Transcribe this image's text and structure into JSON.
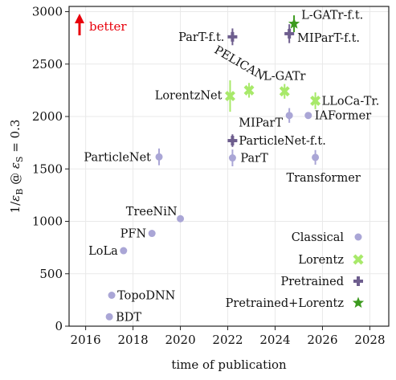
{
  "chart_data": {
    "type": "scatter",
    "xlabel": "time of publication",
    "ylabel": "1/ε_B @ ε_S = 0.3",
    "xlim": [
      2015.3,
      2028.8
    ],
    "ylim": [
      0,
      3050
    ],
    "x_ticks": [
      2016,
      2018,
      2020,
      2022,
      2024,
      2026,
      2028
    ],
    "y_ticks": [
      0,
      500,
      1000,
      1500,
      2000,
      2500,
      3000
    ],
    "grid": true,
    "legend_position": "bottom-right",
    "annotation": {
      "text": "better",
      "color": "#e8000b"
    },
    "colors": {
      "classical": "#aaa6d6",
      "lorentz": "#a8e96a",
      "pretrained": "#6e5e8e",
      "pretrained_lorentz": "#3c9a1e",
      "better": "#e8000b"
    },
    "legend": [
      {
        "label": "Classical",
        "category": "classical"
      },
      {
        "label": "Lorentz",
        "category": "lorentz"
      },
      {
        "label": "Pretrained",
        "category": "pretrained"
      },
      {
        "label": "Pretrained+Lorentz",
        "category": "pretrained_lorentz"
      }
    ],
    "points": [
      {
        "name": "BDT",
        "category": "classical",
        "x": 2017.0,
        "y": 90,
        "err": 0
      },
      {
        "name": "TopoDNN",
        "category": "classical",
        "x": 2017.1,
        "y": 295,
        "err": 0
      },
      {
        "name": "LoLa",
        "category": "classical",
        "x": 2017.6,
        "y": 720,
        "err": 0
      },
      {
        "name": "PFN",
        "category": "classical",
        "x": 2018.8,
        "y": 885,
        "err": 0
      },
      {
        "name": "TreeNiN",
        "category": "classical",
        "x": 2020.0,
        "y": 1025,
        "err": 0
      },
      {
        "name": "ParticleNet",
        "category": "classical",
        "x": 2019.1,
        "y": 1615,
        "err": 80
      },
      {
        "name": "ParT",
        "category": "classical",
        "x": 2022.2,
        "y": 1605,
        "err": 80
      },
      {
        "name": "MIParT",
        "category": "classical",
        "x": 2024.6,
        "y": 2010,
        "err": 70
      },
      {
        "name": "IAFormer",
        "category": "classical",
        "x": 2025.4,
        "y": 2010,
        "err": 0
      },
      {
        "name": "Transformer",
        "category": "classical",
        "x": 2025.7,
        "y": 1610,
        "err": 70
      },
      {
        "name": "LorentzNet",
        "category": "lorentz",
        "x": 2022.1,
        "y": 2195,
        "err": 150
      },
      {
        "name": "PELICAN",
        "category": "lorentz",
        "x": 2022.9,
        "y": 2250,
        "err": 70
      },
      {
        "name": "L-GATr",
        "category": "lorentz",
        "x": 2024.4,
        "y": 2240,
        "err": 70
      },
      {
        "name": "LLoCa-Tr.",
        "category": "lorentz",
        "x": 2025.7,
        "y": 2150,
        "err": 80
      },
      {
        "name": "ParticleNet-f.t.",
        "category": "pretrained",
        "x": 2022.2,
        "y": 1770,
        "err": 60
      },
      {
        "name": "ParT-f.t.",
        "category": "pretrained",
        "x": 2022.2,
        "y": 2760,
        "err": 80
      },
      {
        "name": "MIParT-f.t.",
        "category": "pretrained",
        "x": 2024.6,
        "y": 2790,
        "err": 90
      },
      {
        "name": "L-GATr-f.t.",
        "category": "pretrained_lorentz",
        "x": 2024.8,
        "y": 2885,
        "err": 80
      }
    ]
  }
}
